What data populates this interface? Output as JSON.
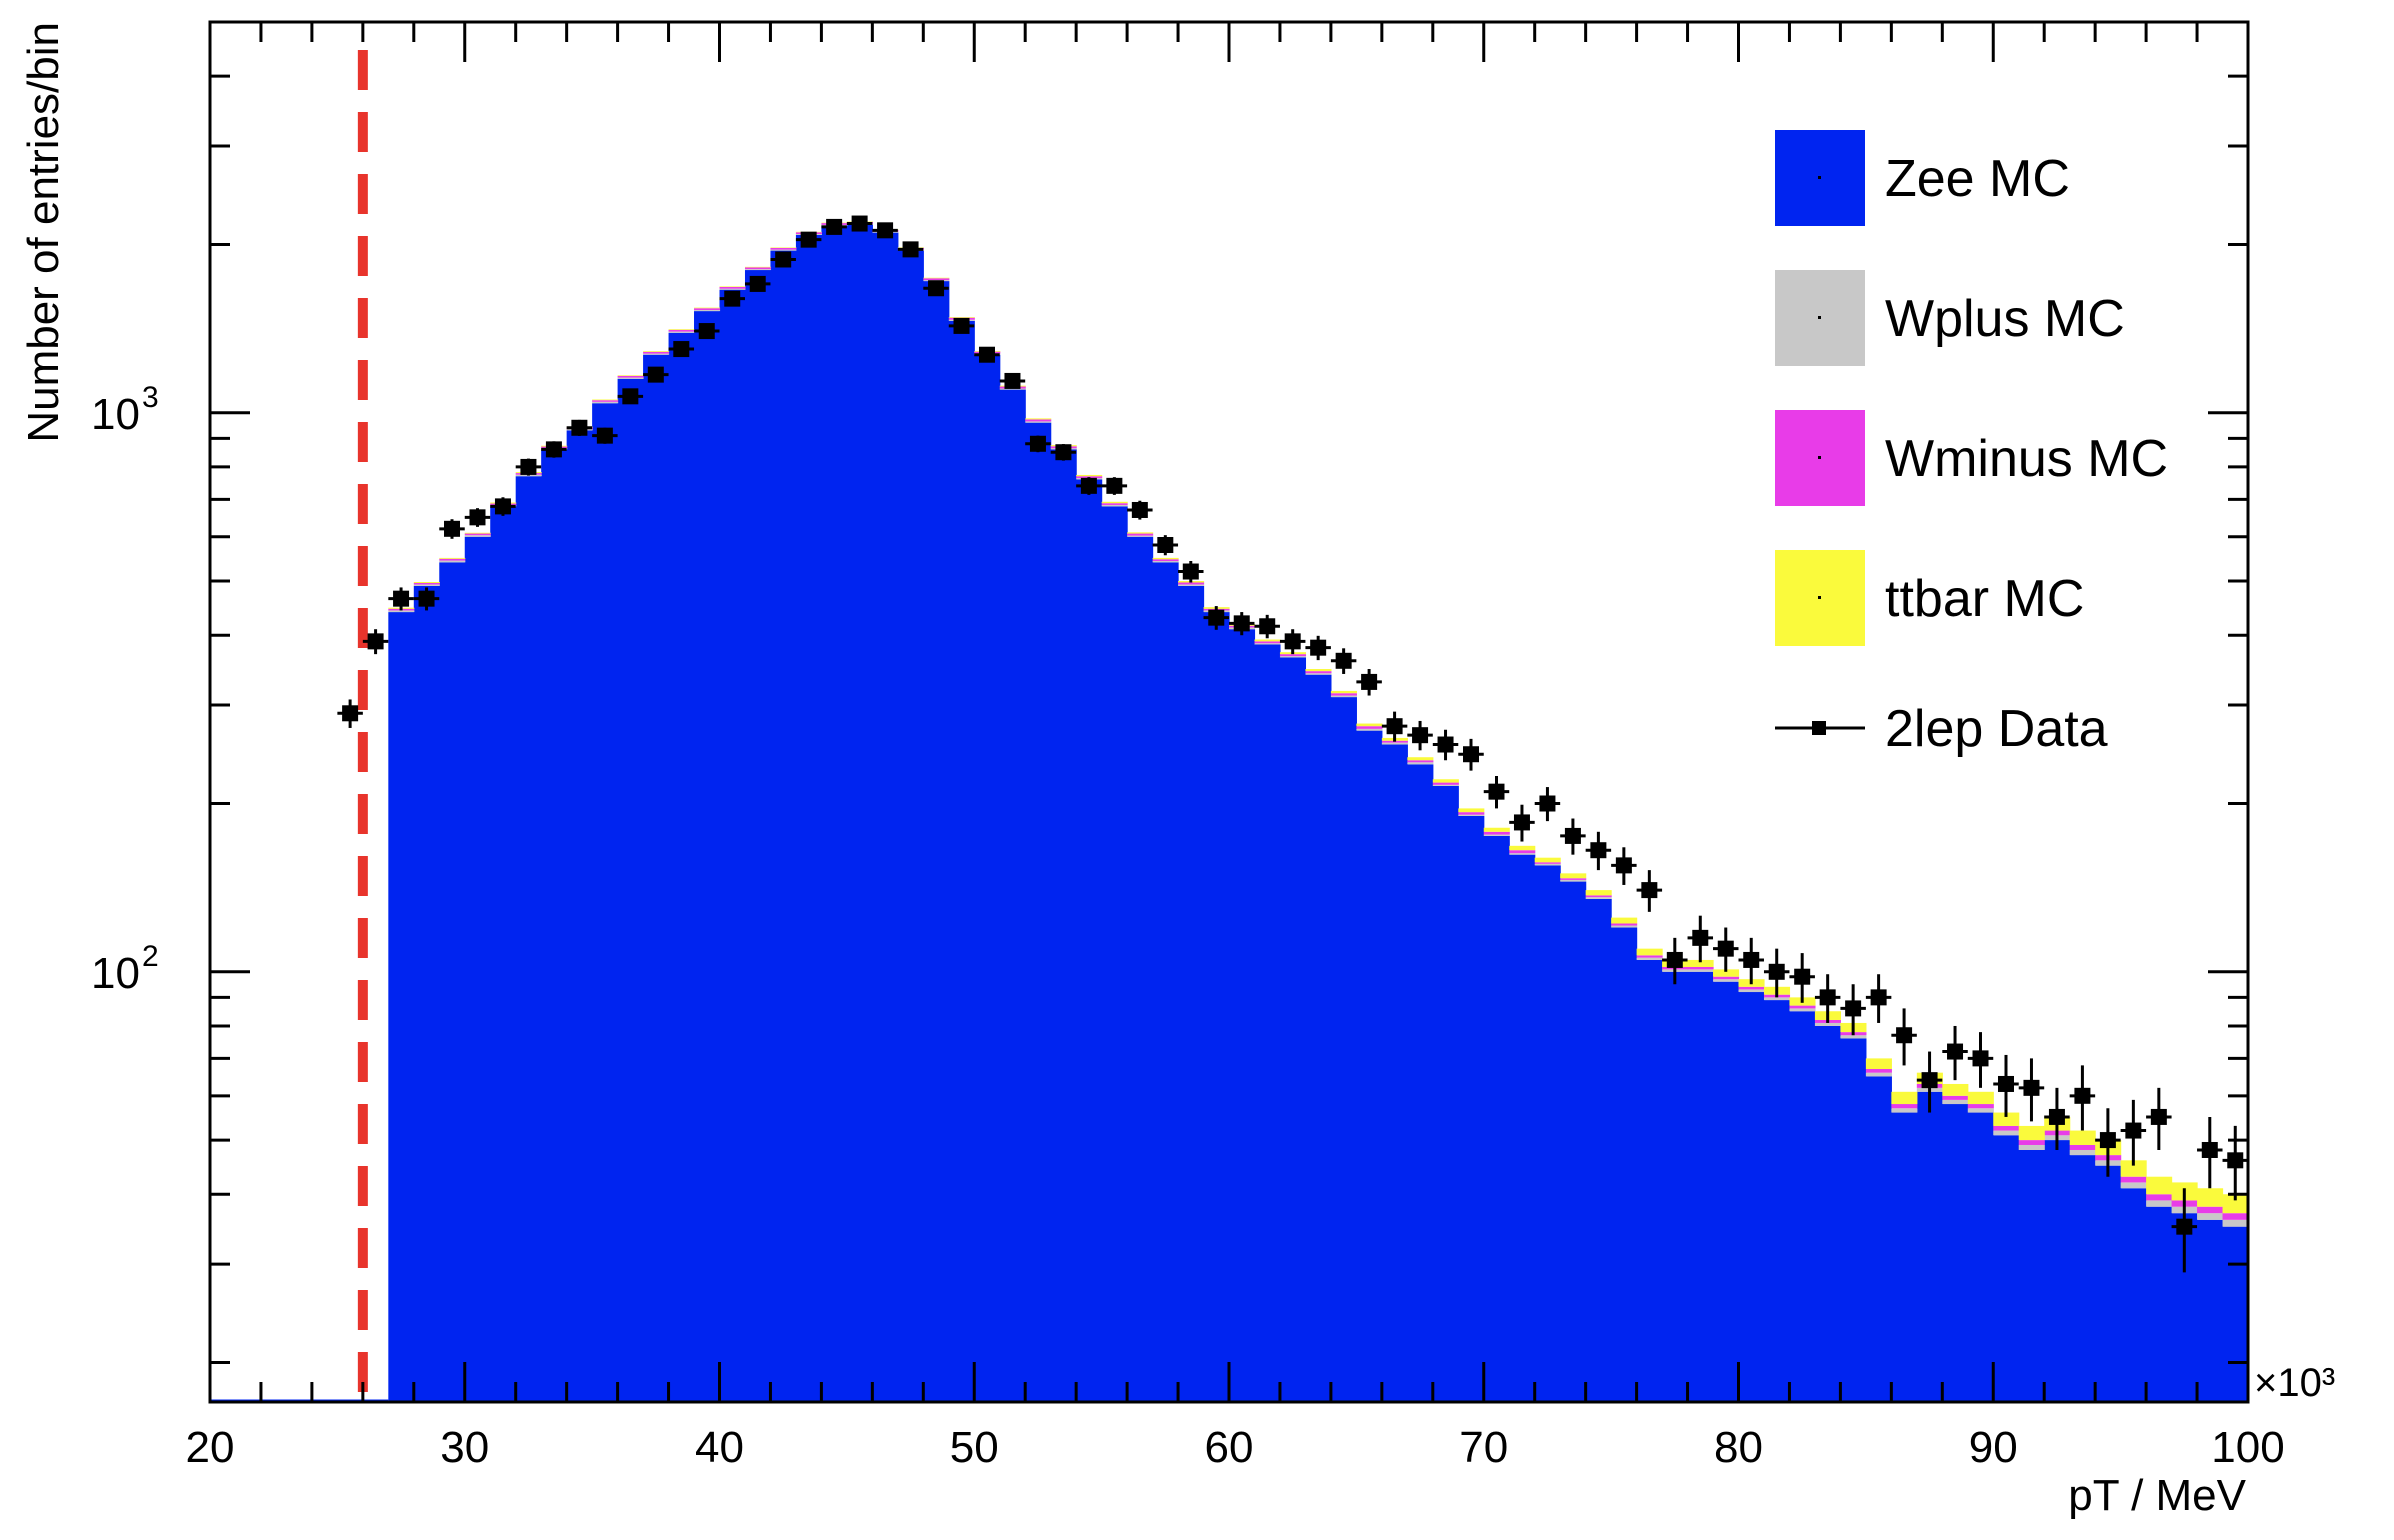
{
  "colors": {
    "Zee MC": "#0024f0",
    "Wplus MC": "#c8c8c8",
    "Wminus MC": "#e83ce8",
    "ttbar MC": "#fafa3c",
    "data": "#000000",
    "cut_line": "#e8342c"
  },
  "chart_data": {
    "type": "bar",
    "histogram": "stacked",
    "xlabel": "pT / MeV",
    "ylabel": "Number of entries/bin",
    "x_multiplier_label": "×10³",
    "xlim": [
      20000,
      100000
    ],
    "ylim": [
      17,
      5000
    ],
    "yscale": "log",
    "x_ticks": [
      20,
      30,
      40,
      50,
      60,
      70,
      80,
      90,
      100
    ],
    "y_tick_labels": [
      {
        "base": "10",
        "exp": "3",
        "value": 1000
      },
      {
        "base": "10",
        "exp": "2",
        "value": 100
      }
    ],
    "bin_width": 1000,
    "bin_low_edges": [
      20000,
      21000,
      22000,
      23000,
      24000,
      25000,
      26000,
      27000,
      28000,
      29000,
      30000,
      31000,
      32000,
      33000,
      34000,
      35000,
      36000,
      37000,
      38000,
      39000,
      40000,
      41000,
      42000,
      43000,
      44000,
      45000,
      46000,
      47000,
      48000,
      49000,
      50000,
      51000,
      52000,
      53000,
      54000,
      55000,
      56000,
      57000,
      58000,
      59000,
      60000,
      61000,
      62000,
      63000,
      64000,
      65000,
      66000,
      67000,
      68000,
      69000,
      70000,
      71000,
      72000,
      73000,
      74000,
      75000,
      76000,
      77000,
      78000,
      79000,
      80000,
      81000,
      82000,
      83000,
      84000,
      85000,
      86000,
      87000,
      88000,
      89000,
      90000,
      91000,
      92000,
      93000,
      94000,
      95000,
      96000,
      97000,
      98000,
      99000
    ],
    "series": [
      {
        "name": "Zee MC",
        "values": [
          0,
          0,
          0,
          0,
          0,
          0,
          0,
          440,
          490,
          540,
          600,
          680,
          770,
          860,
          930,
          1040,
          1150,
          1270,
          1390,
          1520,
          1660,
          1800,
          1950,
          2080,
          2160,
          2170,
          2100,
          1950,
          1720,
          1460,
          1270,
          1100,
          960,
          860,
          760,
          680,
          600,
          540,
          490,
          440,
          410,
          385,
          365,
          340,
          310,
          270,
          255,
          235,
          215,
          190,
          175,
          162,
          155,
          145,
          135,
          120,
          105,
          100,
          100,
          96,
          92,
          89,
          85,
          80,
          76,
          65,
          56,
          61,
          58,
          56,
          51,
          48,
          50,
          47,
          45,
          41,
          38,
          37,
          36,
          35
        ]
      },
      {
        "name": "Wplus MC",
        "values": [
          0,
          0,
          0,
          0,
          0,
          0,
          0,
          3,
          3,
          4,
          4,
          4,
          5,
          5,
          5,
          6,
          6,
          6,
          7,
          7,
          7,
          7,
          8,
          8,
          8,
          8,
          8,
          8,
          7,
          7,
          6,
          5,
          5,
          4,
          4,
          4,
          3,
          3,
          3,
          3,
          3,
          2,
          2,
          2,
          2,
          2,
          2,
          2,
          1,
          1,
          1,
          1,
          1,
          1,
          1,
          1,
          1,
          1,
          1,
          1,
          1,
          1,
          1,
          1,
          1,
          1,
          1,
          1,
          1,
          1,
          1,
          1,
          1,
          1,
          1,
          1,
          1,
          1,
          1,
          1
        ]
      },
      {
        "name": "Wminus MC",
        "values": [
          0,
          0,
          0,
          0,
          0,
          0,
          0,
          3,
          3,
          4,
          4,
          4,
          5,
          5,
          6,
          7,
          8,
          9,
          10,
          11,
          12,
          13,
          14,
          15,
          16,
          16,
          15,
          14,
          13,
          12,
          10,
          9,
          8,
          7,
          6,
          5,
          5,
          4,
          4,
          3,
          3,
          3,
          3,
          3,
          3,
          3,
          2,
          2,
          2,
          2,
          2,
          2,
          1,
          1,
          1,
          1,
          1,
          1,
          1,
          1,
          1,
          1,
          1,
          1,
          1,
          1,
          1,
          1,
          1,
          1,
          1,
          1,
          1,
          1,
          1,
          1,
          1,
          1,
          1,
          1
        ]
      },
      {
        "name": "ttbar MC",
        "values": [
          0,
          0,
          0,
          0,
          0,
          0,
          0,
          2,
          2,
          2,
          2,
          3,
          3,
          3,
          3,
          3,
          3,
          4,
          4,
          4,
          4,
          4,
          4,
          4,
          4,
          4,
          4,
          4,
          4,
          4,
          4,
          4,
          4,
          4,
          4,
          4,
          3,
          3,
          3,
          3,
          3,
          3,
          3,
          3,
          3,
          3,
          3,
          3,
          3,
          3,
          3,
          3,
          3,
          3,
          3,
          3,
          3,
          3,
          3,
          3,
          3,
          3,
          3,
          3,
          3,
          3,
          3,
          3,
          3,
          3,
          3,
          3,
          3,
          3,
          3,
          3,
          3,
          3,
          3,
          3
        ]
      }
    ],
    "data": {
      "name": "2lep Data",
      "x": [
        25500,
        26500,
        27500,
        28500,
        29500,
        30500,
        31500,
        32500,
        33500,
        34500,
        35500,
        36500,
        37500,
        38500,
        39500,
        40500,
        41500,
        42500,
        43500,
        44500,
        45500,
        46500,
        47500,
        48500,
        49500,
        50500,
        51500,
        52500,
        53500,
        54500,
        55500,
        56500,
        57500,
        58500,
        59500,
        60500,
        61500,
        62500,
        63500,
        64500,
        65500,
        66500,
        67500,
        68500,
        69500,
        70500,
        71500,
        72500,
        73500,
        74500,
        75500,
        76500,
        77500,
        78500,
        79500,
        80500,
        81500,
        82500,
        83500,
        84500,
        85500,
        86500,
        87500,
        88500,
        89500,
        90500,
        91500,
        92500,
        93500,
        94500,
        95500,
        96500,
        97500,
        98500,
        99500
      ],
      "y": [
        290,
        390,
        465,
        465,
        620,
        650,
        680,
        800,
        860,
        940,
        910,
        1070,
        1170,
        1300,
        1400,
        1600,
        1700,
        1880,
        2040,
        2150,
        2180,
        2120,
        1960,
        1670,
        1430,
        1270,
        1140,
        880,
        850,
        740,
        740,
        670,
        580,
        520,
        430,
        420,
        415,
        390,
        380,
        360,
        330,
        275,
        265,
        255,
        245,
        210,
        185,
        200,
        175,
        165,
        155,
        140,
        105,
        115,
        110,
        105,
        100,
        98,
        90,
        86,
        90,
        77,
        64,
        72,
        70,
        63,
        62,
        55,
        60,
        50,
        52,
        55,
        35,
        48,
        46
      ],
      "yerr": [
        17,
        20,
        22,
        22,
        25,
        25,
        26,
        28,
        29,
        31,
        30,
        33,
        34,
        36,
        37,
        40,
        41,
        43,
        45,
        46,
        47,
        46,
        44,
        41,
        38,
        36,
        34,
        30,
        29,
        27,
        27,
        26,
        24,
        23,
        21,
        20,
        20,
        20,
        19,
        19,
        18,
        17,
        16,
        16,
        16,
        14,
        14,
        14,
        13,
        13,
        12,
        12,
        10,
        11,
        10,
        10,
        10,
        10,
        9,
        9,
        9,
        9,
        8,
        8,
        8,
        8,
        8,
        7,
        8,
        7,
        7,
        7,
        6,
        7,
        7
      ]
    },
    "cut_line": {
      "x": 26000
    },
    "legend": {
      "position": "top-right",
      "entries": [
        {
          "label": "Zee MC",
          "marker": "fill"
        },
        {
          "label": "Wplus MC",
          "marker": "fill"
        },
        {
          "label": "Wminus MC",
          "marker": "fill"
        },
        {
          "label": "ttbar MC",
          "marker": "fill"
        },
        {
          "label": "2lep Data",
          "marker": "line-point"
        }
      ]
    },
    "grid": false
  }
}
